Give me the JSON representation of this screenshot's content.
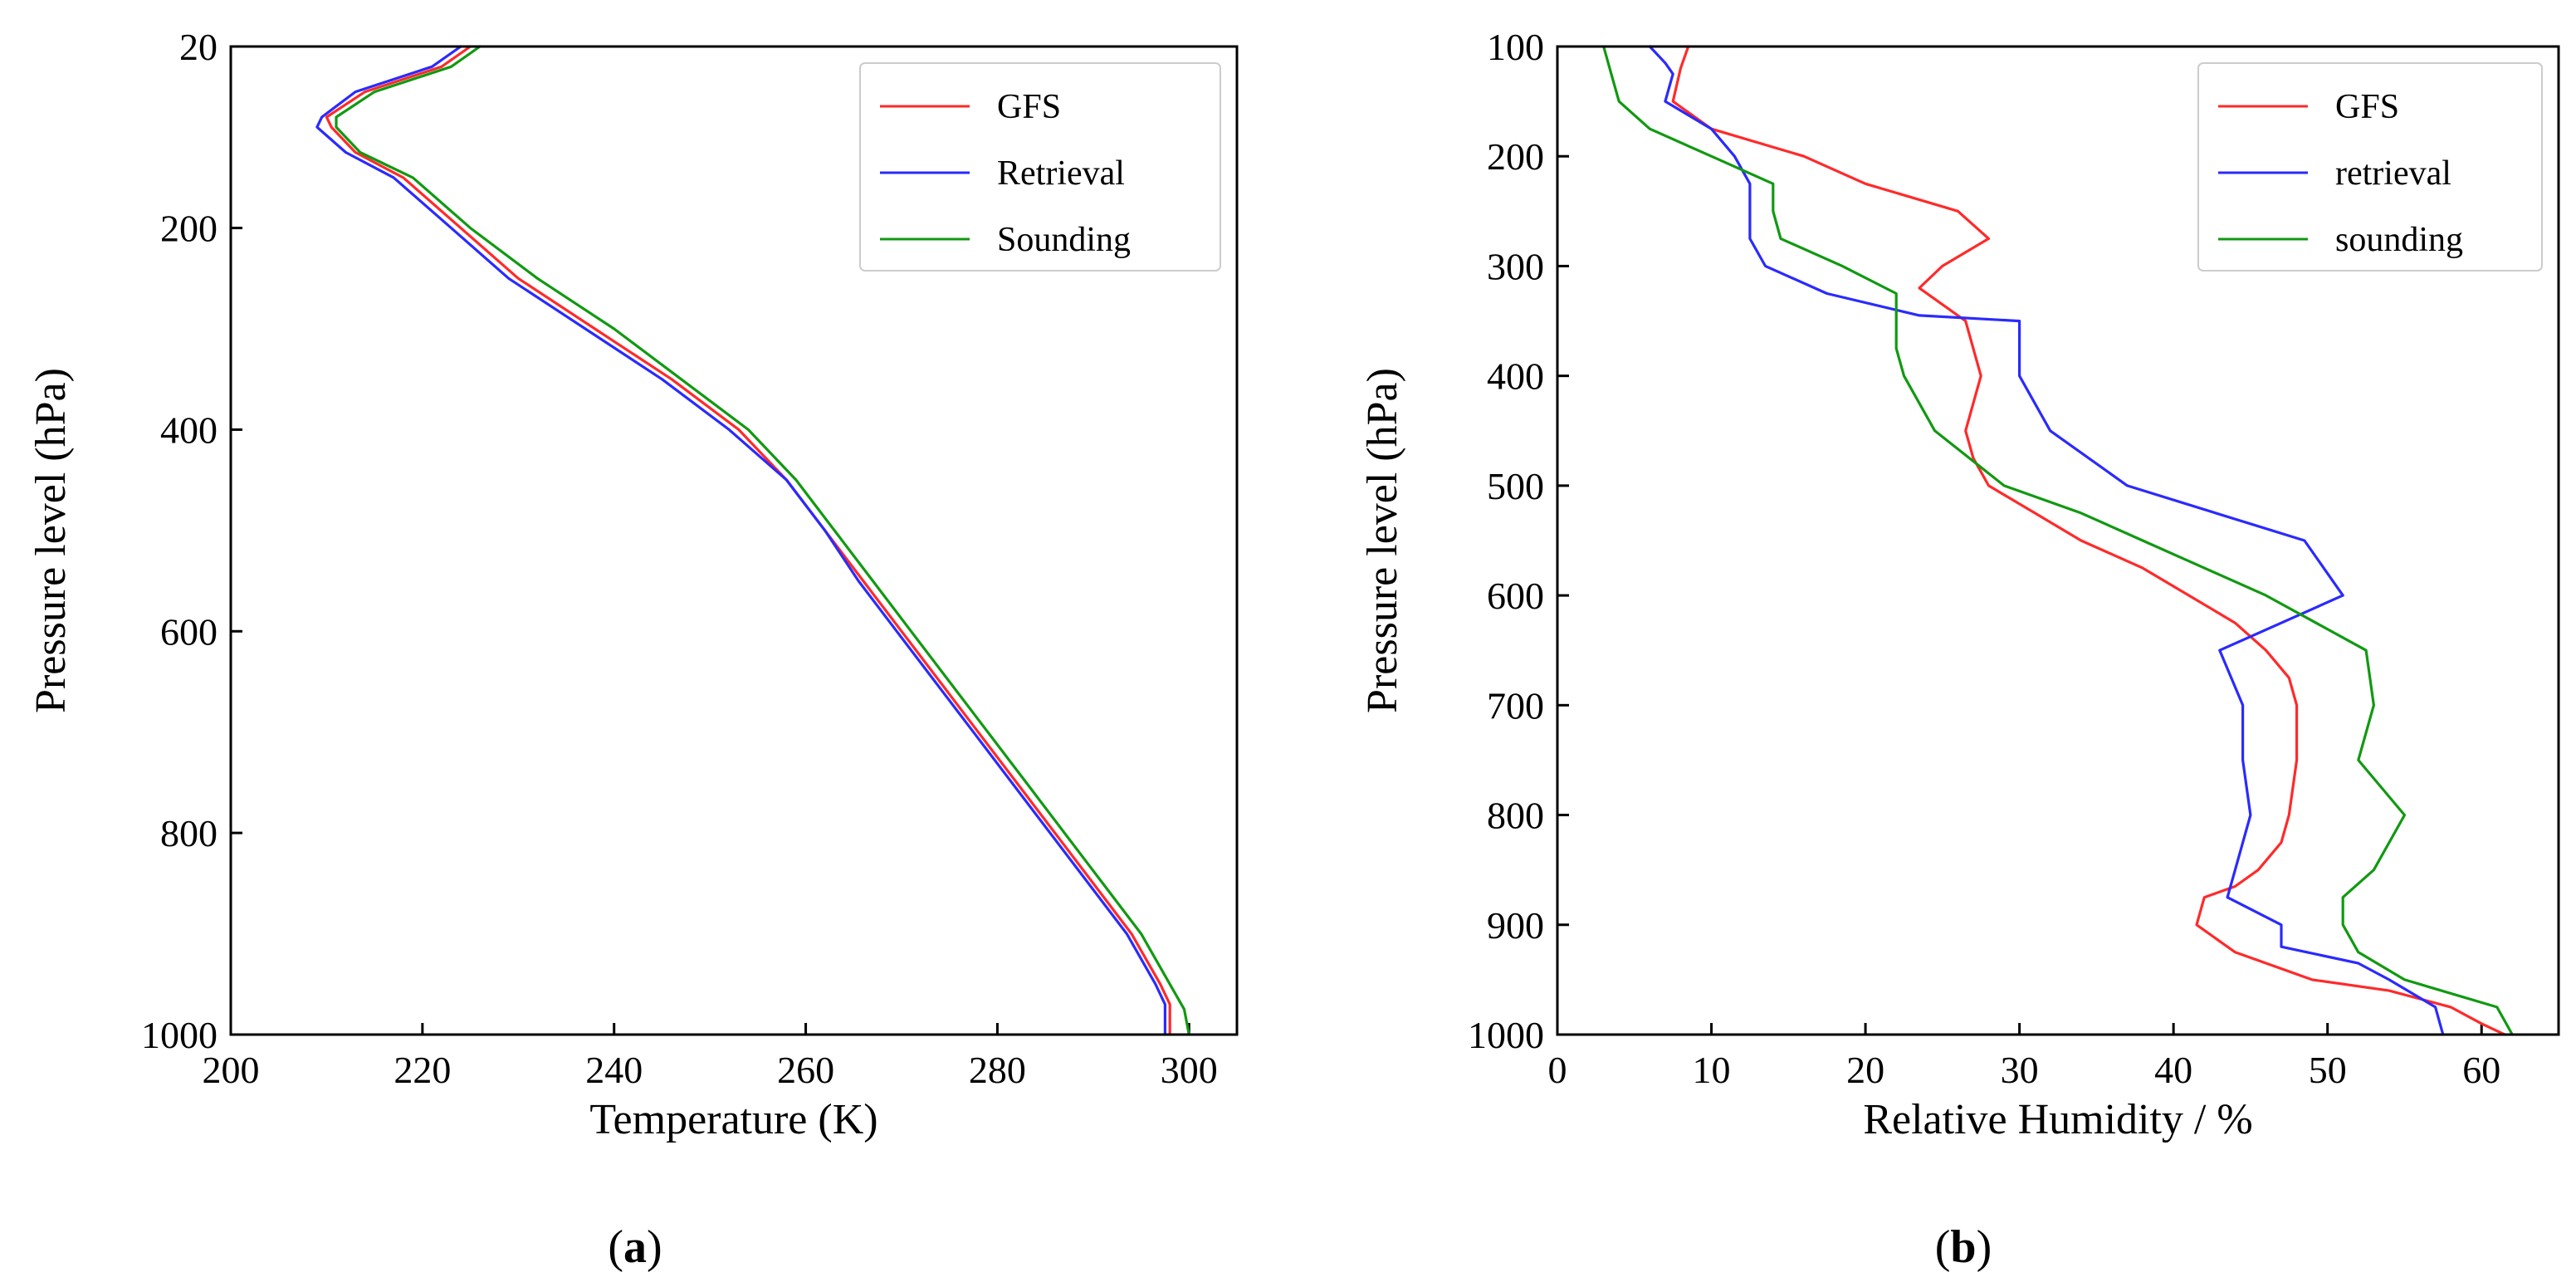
{
  "colors": {
    "gfs": "#ff2a2a",
    "retrieval": "#2a2aff",
    "sounding": "#119911"
  },
  "chart_data": [
    {
      "type": "line",
      "panel": "a",
      "caption_left": "(",
      "caption_letter": "a",
      "caption_right": ")",
      "xlabel": "Temperature (K)",
      "ylabel": "Pressure level (hPa)",
      "xlim": [
        200,
        305
      ],
      "ylim": [
        20,
        1000
      ],
      "y_inverted": true,
      "xticks": [
        200,
        220,
        240,
        260,
        280,
        300
      ],
      "yticks": [
        20,
        200,
        400,
        600,
        800,
        1000
      ],
      "legend_position": "top-right",
      "series": [
        {
          "name": "GFS",
          "color_key": "gfs",
          "points": [
            [
              225,
              20
            ],
            [
              222,
              40
            ],
            [
              214,
              65
            ],
            [
              210,
              90
            ],
            [
              210.5,
              100
            ],
            [
              213,
              125
            ],
            [
              218,
              150
            ],
            [
              224,
              200
            ],
            [
              230,
              250
            ],
            [
              238,
              300
            ],
            [
              246,
              350
            ],
            [
              253,
              400
            ],
            [
              258,
              450
            ],
            [
              262,
              500
            ],
            [
              266,
              550
            ],
            [
              270,
              600
            ],
            [
              274,
              650
            ],
            [
              278,
              700
            ],
            [
              282,
              750
            ],
            [
              286,
              800
            ],
            [
              290,
              850
            ],
            [
              294,
              900
            ],
            [
              297,
              950
            ],
            [
              298,
              970
            ],
            [
              298,
              1000
            ]
          ]
        },
        {
          "name": "Retrieval",
          "color_key": "retrieval",
          "points": [
            [
              224,
              20
            ],
            [
              221,
              40
            ],
            [
              213,
              65
            ],
            [
              209.5,
              90
            ],
            [
              209,
              100
            ],
            [
              212,
              125
            ],
            [
              217,
              150
            ],
            [
              223,
              200
            ],
            [
              229,
              250
            ],
            [
              237,
              300
            ],
            [
              245,
              350
            ],
            [
              252,
              400
            ],
            [
              258,
              450
            ],
            [
              262,
              500
            ],
            [
              265.5,
              550
            ],
            [
              269.5,
              600
            ],
            [
              273.5,
              650
            ],
            [
              277.5,
              700
            ],
            [
              281.5,
              750
            ],
            [
              285.5,
              800
            ],
            [
              289.5,
              850
            ],
            [
              293.5,
              900
            ],
            [
              296.5,
              950
            ],
            [
              297.5,
              970
            ],
            [
              297.5,
              1000
            ]
          ]
        },
        {
          "name": "Sounding",
          "color_key": "sounding",
          "points": [
            [
              226,
              20
            ],
            [
              223,
              40
            ],
            [
              215,
              65
            ],
            [
              211,
              90
            ],
            [
              211,
              100
            ],
            [
              213.5,
              125
            ],
            [
              219,
              150
            ],
            [
              225,
              200
            ],
            [
              232,
              250
            ],
            [
              240,
              300
            ],
            [
              247,
              350
            ],
            [
              254,
              400
            ],
            [
              259,
              450
            ],
            [
              263,
              500
            ],
            [
              267,
              550
            ],
            [
              271,
              600
            ],
            [
              275,
              650
            ],
            [
              279,
              700
            ],
            [
              283,
              750
            ],
            [
              287,
              800
            ],
            [
              291,
              850
            ],
            [
              295,
              900
            ],
            [
              298,
              950
            ],
            [
              299.5,
              975
            ],
            [
              300,
              1000
            ]
          ]
        }
      ]
    },
    {
      "type": "line",
      "panel": "b",
      "caption_left": "(",
      "caption_letter": "b",
      "caption_right": ")",
      "xlabel": "Relative Humidity / %",
      "ylabel": "Pressure level (hPa)",
      "xlim": [
        0,
        65
      ],
      "ylim": [
        100,
        1000
      ],
      "y_inverted": true,
      "xticks": [
        0,
        10,
        20,
        30,
        40,
        50,
        60
      ],
      "yticks": [
        100,
        200,
        300,
        400,
        500,
        600,
        700,
        800,
        900,
        1000
      ],
      "legend_position": "top-right",
      "series": [
        {
          "name": "GFS",
          "color_key": "gfs",
          "points": [
            [
              8.5,
              100
            ],
            [
              8,
              120
            ],
            [
              7.5,
              150
            ],
            [
              10,
              175
            ],
            [
              16,
              200
            ],
            [
              20,
              225
            ],
            [
              26,
              250
            ],
            [
              28,
              275
            ],
            [
              25,
              300
            ],
            [
              23.5,
              320
            ],
            [
              26.5,
              350
            ],
            [
              27.5,
              400
            ],
            [
              26.5,
              450
            ],
            [
              27,
              475
            ],
            [
              28,
              500
            ],
            [
              31,
              525
            ],
            [
              34,
              550
            ],
            [
              38,
              575
            ],
            [
              41,
              600
            ],
            [
              44,
              625
            ],
            [
              46,
              650
            ],
            [
              47.5,
              675
            ],
            [
              48,
              700
            ],
            [
              48,
              750
            ],
            [
              47.5,
              800
            ],
            [
              47,
              825
            ],
            [
              45.5,
              850
            ],
            [
              44,
              865
            ],
            [
              42,
              875
            ],
            [
              41.5,
              900
            ],
            [
              44,
              925
            ],
            [
              49,
              950
            ],
            [
              54,
              960
            ],
            [
              58,
              975
            ],
            [
              60,
              990
            ],
            [
              61.5,
              1000
            ]
          ]
        },
        {
          "name": "retrieval",
          "color_key": "retrieval",
          "points": [
            [
              6,
              100
            ],
            [
              7,
              115
            ],
            [
              7.5,
              125
            ],
            [
              7,
              150
            ],
            [
              10,
              175
            ],
            [
              11.5,
              200
            ],
            [
              12.5,
              225
            ],
            [
              12.5,
              250
            ],
            [
              12.5,
              275
            ],
            [
              13.5,
              300
            ],
            [
              17.5,
              325
            ],
            [
              23.5,
              345
            ],
            [
              30,
              350
            ],
            [
              30,
              400
            ],
            [
              32,
              450
            ],
            [
              37,
              500
            ],
            [
              48.5,
              550
            ],
            [
              51,
              600
            ],
            [
              47,
              625
            ],
            [
              43,
              650
            ],
            [
              44.5,
              700
            ],
            [
              44.5,
              750
            ],
            [
              45,
              800
            ],
            [
              44,
              850
            ],
            [
              43.5,
              875
            ],
            [
              47,
              900
            ],
            [
              47,
              920
            ],
            [
              52,
              935
            ],
            [
              54,
              950
            ],
            [
              57,
              975
            ],
            [
              57.5,
              1000
            ]
          ]
        },
        {
          "name": "sounding",
          "color_key": "sounding",
          "points": [
            [
              3,
              100
            ],
            [
              3.5,
              125
            ],
            [
              4,
              150
            ],
            [
              6,
              175
            ],
            [
              10,
              200
            ],
            [
              14,
              225
            ],
            [
              14,
              250
            ],
            [
              14.5,
              275
            ],
            [
              18.5,
              300
            ],
            [
              22,
              325
            ],
            [
              22,
              350
            ],
            [
              22,
              375
            ],
            [
              22.5,
              400
            ],
            [
              24.5,
              450
            ],
            [
              29,
              500
            ],
            [
              34,
              525
            ],
            [
              38,
              550
            ],
            [
              42,
              575
            ],
            [
              46,
              600
            ],
            [
              52.5,
              650
            ],
            [
              53,
              700
            ],
            [
              52,
              750
            ],
            [
              55,
              800
            ],
            [
              53,
              850
            ],
            [
              51,
              875
            ],
            [
              51,
              900
            ],
            [
              52,
              925
            ],
            [
              55,
              950
            ],
            [
              61,
              975
            ],
            [
              62,
              1000
            ]
          ]
        }
      ]
    }
  ]
}
